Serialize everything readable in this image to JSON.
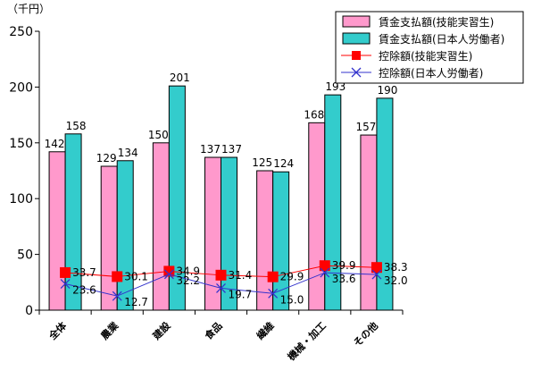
{
  "chart_data": {
    "type": "bar",
    "unit_label": "（千円）",
    "categories": [
      "全体",
      "農業",
      "建設",
      "食品",
      "繊維",
      "機械・加工",
      "その他"
    ],
    "ylim": [
      0,
      250
    ],
    "yticks": [
      0,
      50,
      100,
      150,
      200,
      250
    ],
    "grid": false,
    "legend_position": "top-right",
    "series": [
      {
        "name": "賃金支払額(技能実習生)",
        "kind": "bar",
        "color": "#ff99cc",
        "values": [
          142,
          129,
          150,
          137,
          125,
          168,
          157
        ]
      },
      {
        "name": "賃金支払額(日本人労働者)",
        "kind": "bar",
        "color": "#33cccc",
        "values": [
          158,
          134,
          201,
          137,
          124,
          193,
          190
        ]
      },
      {
        "name": "控除額(技能実習生)",
        "kind": "line",
        "marker": "square",
        "color": "#ff0000",
        "values": [
          33.7,
          30.1,
          34.9,
          31.4,
          29.9,
          39.9,
          38.3
        ]
      },
      {
        "name": "控除額(日本人労働者)",
        "kind": "line",
        "marker": "x",
        "color": "#3333cc",
        "values": [
          23.6,
          12.7,
          32.2,
          19.7,
          15.0,
          33.6,
          32.0
        ]
      }
    ],
    "bar_value_labels": [
      [
        "142",
        "129",
        "150",
        "137",
        "125",
        "168",
        "157"
      ],
      [
        "158",
        "134",
        "201",
        "137",
        "124",
        "193",
        "190"
      ]
    ],
    "line_value_labels": [
      [
        "33.7",
        "30.1",
        "34.9",
        "31.4",
        "29.9",
        "39.9",
        "38.3"
      ],
      [
        "23.6",
        "12.7",
        "32.2",
        "19.7",
        "15.0",
        "33.6",
        "32.0"
      ]
    ]
  }
}
